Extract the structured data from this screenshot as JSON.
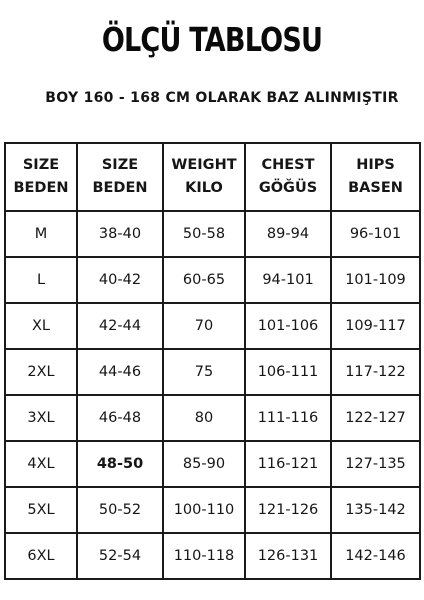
{
  "title": "ÖLÇÜ TABLOSU",
  "subtitle": "BOY 160 - 168 CM OLARAK BAZ ALINMIŞTIR",
  "table": {
    "headers": [
      {
        "line1": "SIZE",
        "line2": "BEDEN"
      },
      {
        "line1": "SIZE",
        "line2": "BEDEN"
      },
      {
        "line1": "WEIGHT",
        "line2": "KILO"
      },
      {
        "line1": "CHEST",
        "line2": "GÖĞÜS"
      },
      {
        "line1": "HIPS",
        "line2": "BASEN"
      }
    ],
    "rows": [
      [
        "M",
        "38-40",
        "50-58",
        "89-94",
        "96-101"
      ],
      [
        "L",
        "40-42",
        "60-65",
        "94-101",
        "101-109"
      ],
      [
        "XL",
        "42-44",
        "70",
        "101-106",
        "109-117"
      ],
      [
        "2XL",
        "44-46",
        "75",
        "106-111",
        "117-122"
      ],
      [
        "3XL",
        "46-48",
        "80",
        "111-116",
        "122-127"
      ],
      [
        "4XL",
        "48-50",
        "85-90",
        "116-121",
        "127-135"
      ],
      [
        "5XL",
        "50-52",
        "100-110",
        "121-126",
        "135-142"
      ],
      [
        "6XL",
        "52-54",
        "110-118",
        "126-131",
        "142-146"
      ]
    ]
  }
}
